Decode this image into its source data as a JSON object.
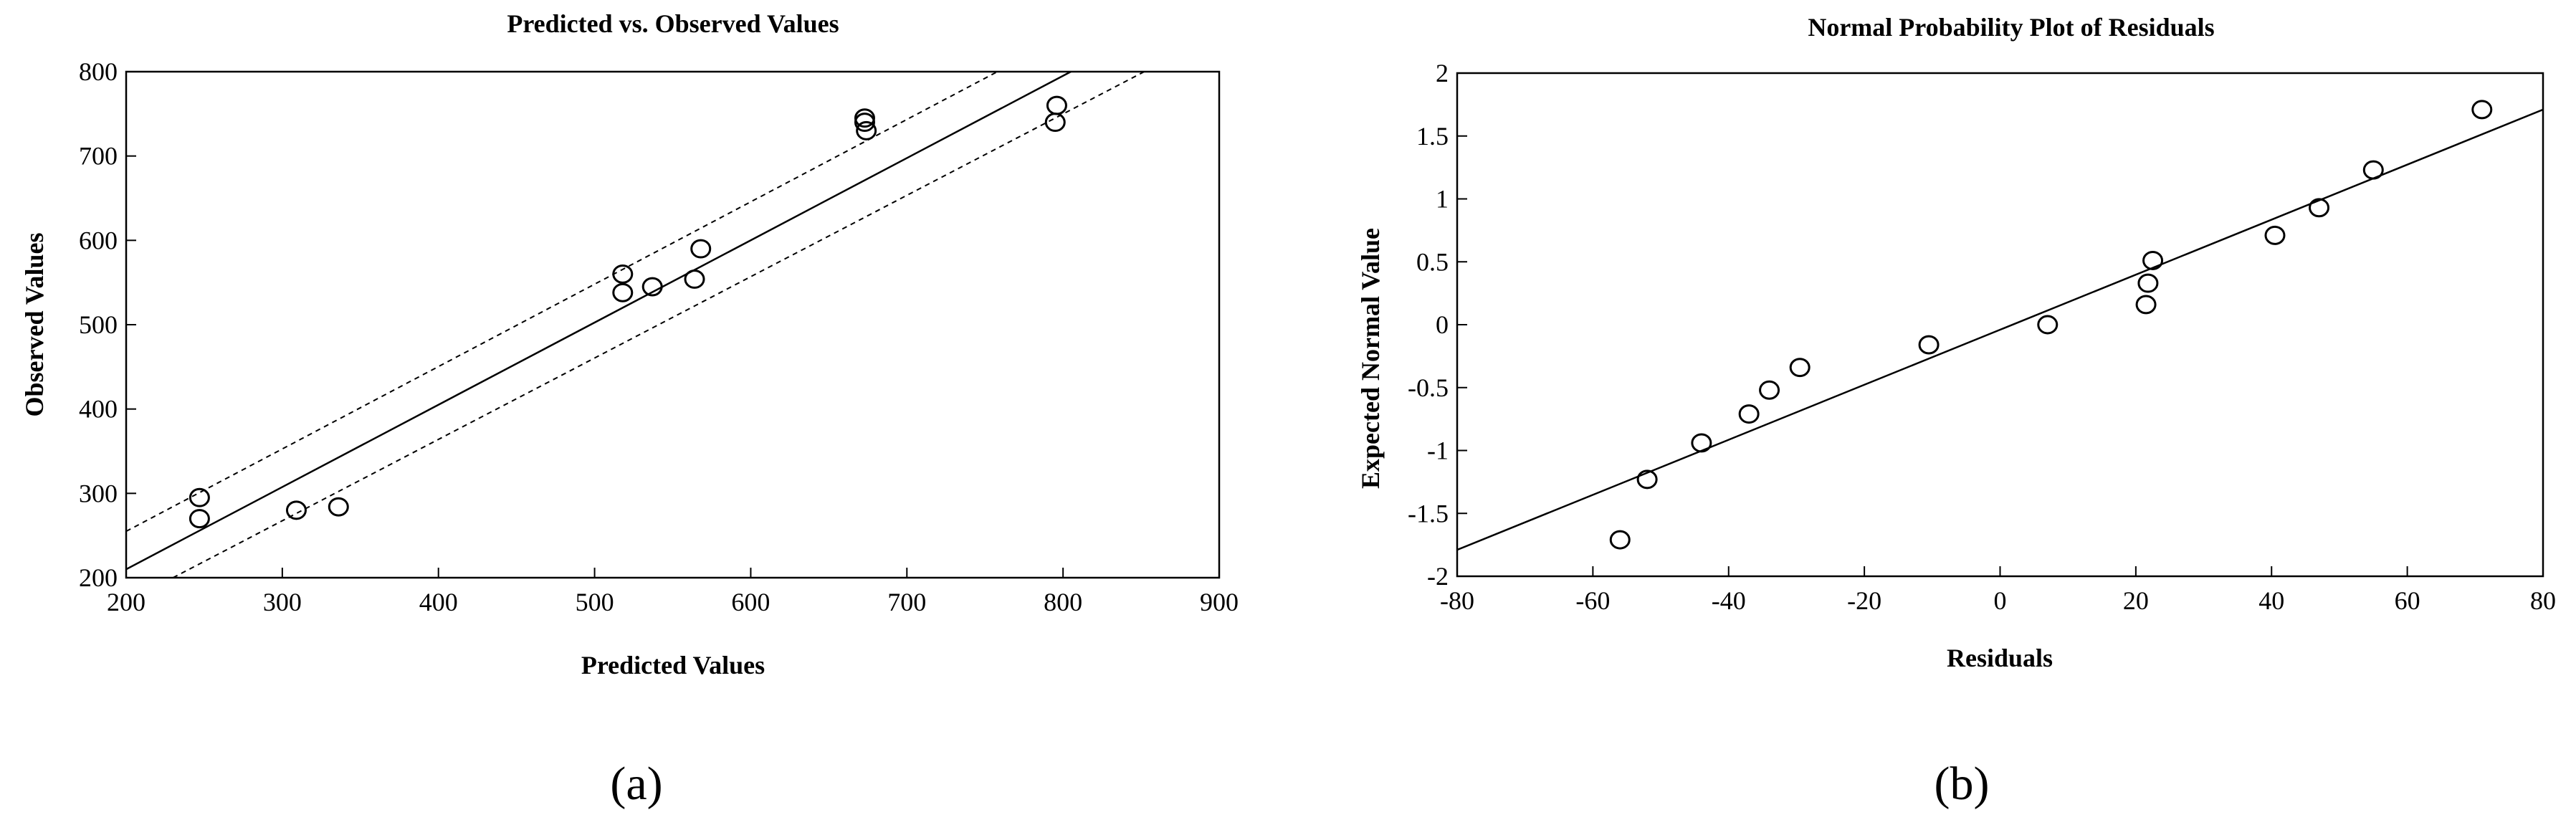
{
  "chart_data": [
    {
      "type": "scatter",
      "title": "Predicted vs. Observed Values",
      "xlabel": "Predicted Values",
      "ylabel": "Observed Values",
      "panel_label": "(a)",
      "xlim": [
        200,
        900
      ],
      "ylim": [
        200,
        800
      ],
      "xticks": [
        200,
        300,
        400,
        500,
        600,
        700,
        800,
        900
      ],
      "yticks": [
        200,
        300,
        400,
        500,
        600,
        700,
        800
      ],
      "grid": false,
      "points": [
        {
          "x": 247,
          "y": 295
        },
        {
          "x": 247,
          "y": 270
        },
        {
          "x": 309,
          "y": 280
        },
        {
          "x": 336,
          "y": 284
        },
        {
          "x": 518,
          "y": 560
        },
        {
          "x": 518,
          "y": 538
        },
        {
          "x": 537,
          "y": 545
        },
        {
          "x": 564,
          "y": 554
        },
        {
          "x": 568,
          "y": 590
        },
        {
          "x": 673,
          "y": 745
        },
        {
          "x": 673,
          "y": 740
        },
        {
          "x": 674,
          "y": 730
        },
        {
          "x": 796,
          "y": 760
        },
        {
          "x": 795,
          "y": 740
        }
      ],
      "fit_line": [
        [
          200,
          210
        ],
        [
          805,
          800
        ]
      ],
      "confidence_band_upper": [
        [
          200,
          255
        ],
        [
          758,
          800
        ]
      ],
      "confidence_band_lower": [
        [
          230,
          200
        ],
        [
          852,
          800
        ]
      ]
    },
    {
      "type": "scatter",
      "title": "Normal Probability Plot of Residuals",
      "xlabel": "Residuals",
      "ylabel": "Expected Normal Value",
      "panel_label": "(b)",
      "xlim": [
        -80,
        80
      ],
      "ylim": [
        -2,
        2
      ],
      "xticks": [
        -80,
        -60,
        -40,
        -20,
        0,
        20,
        40,
        60,
        80
      ],
      "yticks": [
        -2,
        -1.5,
        -1,
        -0.5,
        0,
        0.5,
        1,
        1.5,
        2
      ],
      "grid": false,
      "points": [
        {
          "x": -56,
          "y": -1.71
        },
        {
          "x": -52,
          "y": -1.23
        },
        {
          "x": -44,
          "y": -0.94
        },
        {
          "x": -37,
          "y": -0.71
        },
        {
          "x": -34,
          "y": -0.52
        },
        {
          "x": -29.5,
          "y": -0.34
        },
        {
          "x": -10.5,
          "y": -0.16
        },
        {
          "x": 7,
          "y": 0
        },
        {
          "x": 21.5,
          "y": 0.16
        },
        {
          "x": 21.8,
          "y": 0.33
        },
        {
          "x": 22.5,
          "y": 0.51
        },
        {
          "x": 40.5,
          "y": 0.71
        },
        {
          "x": 47,
          "y": 0.93
        },
        {
          "x": 55,
          "y": 1.23
        },
        {
          "x": 71,
          "y": 1.71
        }
      ],
      "fit_line": [
        [
          -80,
          -1.79
        ],
        [
          80,
          1.71
        ]
      ]
    }
  ]
}
